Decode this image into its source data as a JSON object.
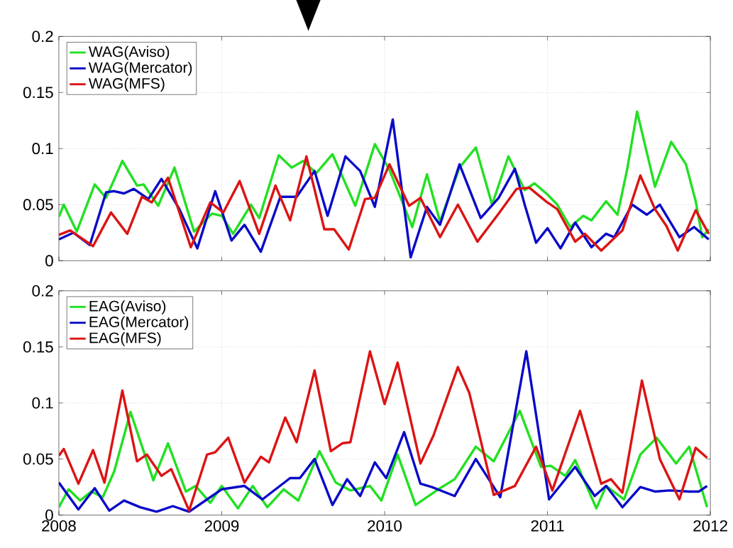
{
  "chart_data": [
    {
      "type": "line",
      "xlim": [
        2008,
        2012
      ],
      "xticks": [
        2008,
        2009,
        2010,
        2011,
        2012
      ],
      "ylim": [
        0,
        0.2
      ],
      "yticks": [
        0,
        0.05,
        0.1,
        0.15,
        0.2
      ],
      "grid": true,
      "legend": "top left",
      "line_style": "solid",
      "tick_labels": "y",
      "series": [
        {
          "name": "WAG(Aviso)",
          "color": "#22e022",
          "x": [
            2008.0,
            2008.03,
            2008.11,
            2008.22,
            2008.29,
            2008.39,
            2008.48,
            2008.52,
            2008.61,
            2008.71,
            2008.83,
            2008.94,
            2009.0,
            2009.07,
            2009.18,
            2009.23,
            2009.35,
            2009.43,
            2009.5,
            2009.58,
            2009.68,
            2009.82,
            2009.94,
            2010.03,
            2010.17,
            2010.26,
            2010.34,
            2010.46,
            2010.56,
            2010.66,
            2010.76,
            2010.86,
            2010.92,
            2011.0,
            2011.06,
            2011.14,
            2011.22,
            2011.27,
            2011.36,
            2011.43,
            2011.49,
            2011.55,
            2011.66,
            2011.76,
            2011.85,
            2011.91,
            2011.95,
            2011.99
          ],
          "values": [
            0.039,
            0.05,
            0.026,
            0.068,
            0.056,
            0.089,
            0.067,
            0.068,
            0.049,
            0.083,
            0.026,
            0.042,
            0.04,
            0.024,
            0.05,
            0.038,
            0.094,
            0.083,
            0.089,
            0.078,
            0.095,
            0.049,
            0.104,
            0.081,
            0.03,
            0.077,
            0.035,
            0.083,
            0.101,
            0.05,
            0.093,
            0.063,
            0.069,
            0.059,
            0.05,
            0.03,
            0.04,
            0.036,
            0.053,
            0.041,
            0.082,
            0.133,
            0.066,
            0.106,
            0.086,
            0.053,
            0.021,
            0.028
          ]
        },
        {
          "name": "WAG(Mercator)",
          "color": "#0a0ac8",
          "x": [
            2008.0,
            2008.09,
            2008.19,
            2008.29,
            2008.34,
            2008.4,
            2008.46,
            2008.55,
            2008.63,
            2008.74,
            2008.85,
            2008.96,
            2009.06,
            2009.14,
            2009.24,
            2009.36,
            2009.46,
            2009.57,
            2009.65,
            2009.76,
            2009.85,
            2009.94,
            2010.05,
            2010.16,
            2010.26,
            2010.34,
            2010.46,
            2010.59,
            2010.7,
            2010.8,
            2010.86,
            2010.93,
            2011.0,
            2011.08,
            2011.17,
            2011.27,
            2011.36,
            2011.41,
            2011.52,
            2011.61,
            2011.69,
            2011.81,
            2011.9,
            2011.99
          ],
          "values": [
            0.019,
            0.025,
            0.014,
            0.061,
            0.062,
            0.06,
            0.064,
            0.055,
            0.073,
            0.046,
            0.011,
            0.062,
            0.018,
            0.032,
            0.008,
            0.057,
            0.057,
            0.08,
            0.04,
            0.093,
            0.08,
            0.048,
            0.126,
            0.003,
            0.048,
            0.032,
            0.086,
            0.038,
            0.056,
            0.082,
            0.05,
            0.016,
            0.029,
            0.011,
            0.034,
            0.012,
            0.024,
            0.021,
            0.05,
            0.041,
            0.05,
            0.021,
            0.03,
            0.019
          ]
        },
        {
          "name": "WAG(MFS)",
          "color": "#dc1414",
          "x": [
            2008.0,
            2008.07,
            2008.21,
            2008.32,
            2008.42,
            2008.51,
            2008.57,
            2008.67,
            2008.81,
            2008.93,
            2009.01,
            2009.11,
            2009.23,
            2009.33,
            2009.42,
            2009.52,
            2009.63,
            2009.69,
            2009.78,
            2009.88,
            2009.94,
            2010.03,
            2010.15,
            2010.22,
            2010.34,
            2010.45,
            2010.57,
            2010.7,
            2010.81,
            2010.89,
            2010.99,
            2011.06,
            2011.17,
            2011.23,
            2011.33,
            2011.46,
            2011.57,
            2011.66,
            2011.73,
            2011.8,
            2011.91,
            2011.99
          ],
          "values": [
            0.023,
            0.027,
            0.013,
            0.043,
            0.024,
            0.057,
            0.052,
            0.074,
            0.012,
            0.052,
            0.043,
            0.071,
            0.024,
            0.067,
            0.036,
            0.093,
            0.028,
            0.028,
            0.01,
            0.055,
            0.056,
            0.086,
            0.049,
            0.056,
            0.021,
            0.05,
            0.017,
            0.042,
            0.064,
            0.065,
            0.053,
            0.046,
            0.017,
            0.024,
            0.009,
            0.027,
            0.076,
            0.046,
            0.031,
            0.009,
            0.045,
            0.024
          ]
        }
      ]
    },
    {
      "type": "line",
      "xlim": [
        2008,
        2012
      ],
      "xticks": [
        2008,
        2009,
        2010,
        2011,
        2012
      ],
      "ylim": [
        0,
        0.2
      ],
      "yticks": [
        0,
        0.05,
        0.1,
        0.15,
        0.2
      ],
      "grid": true,
      "legend": "top left",
      "line_style": "solid",
      "series": [
        {
          "name": "EAG(Aviso)",
          "color": "#22e022",
          "x": [
            2008.0,
            2008.06,
            2008.13,
            2008.2,
            2008.27,
            2008.34,
            2008.44,
            2008.58,
            2008.67,
            2008.78,
            2008.84,
            2008.93,
            2009.0,
            2009.1,
            2009.19,
            2009.28,
            2009.38,
            2009.47,
            2009.6,
            2009.7,
            2009.79,
            2009.91,
            2009.98,
            2010.08,
            2010.19,
            2010.33,
            2010.43,
            2010.56,
            2010.67,
            2010.83,
            2010.96,
            2011.02,
            2011.11,
            2011.17,
            2011.3,
            2011.36,
            2011.47,
            2011.57,
            2011.67,
            2011.79,
            2011.87,
            2011.98
          ],
          "values": [
            0.007,
            0.023,
            0.013,
            0.021,
            0.016,
            0.039,
            0.092,
            0.031,
            0.064,
            0.021,
            0.026,
            0.011,
            0.026,
            0.006,
            0.026,
            0.007,
            0.023,
            0.013,
            0.057,
            0.029,
            0.022,
            0.026,
            0.013,
            0.054,
            0.009,
            0.023,
            0.032,
            0.061,
            0.048,
            0.093,
            0.043,
            0.044,
            0.035,
            0.049,
            0.006,
            0.026,
            0.014,
            0.054,
            0.069,
            0.046,
            0.061,
            0.007
          ]
        },
        {
          "name": "EAG(Mercator)",
          "color": "#0a0ac8",
          "x": [
            2008.0,
            2008.12,
            2008.22,
            2008.31,
            2008.4,
            2008.5,
            2008.6,
            2008.7,
            2008.8,
            2008.91,
            2009.0,
            2009.14,
            2009.25,
            2009.42,
            2009.48,
            2009.57,
            2009.68,
            2009.77,
            2009.85,
            2009.94,
            2010.01,
            2010.12,
            2010.22,
            2010.29,
            2010.43,
            2010.56,
            2010.71,
            2010.87,
            2011.01,
            2011.17,
            2011.29,
            2011.36,
            2011.46,
            2011.57,
            2011.66,
            2011.75,
            2011.87,
            2011.93,
            2011.98
          ],
          "values": [
            0.029,
            0.005,
            0.024,
            0.004,
            0.013,
            0.007,
            0.003,
            0.008,
            0.003,
            0.014,
            0.023,
            0.026,
            0.014,
            0.033,
            0.033,
            0.05,
            0.009,
            0.032,
            0.017,
            0.047,
            0.033,
            0.074,
            0.028,
            0.025,
            0.017,
            0.05,
            0.016,
            0.146,
            0.014,
            0.043,
            0.017,
            0.026,
            0.007,
            0.025,
            0.021,
            0.022,
            0.021,
            0.021,
            0.026
          ]
        },
        {
          "name": "EAG(MFS)",
          "color": "#dc1414",
          "x": [
            2008.0,
            2008.03,
            2008.12,
            2008.21,
            2008.28,
            2008.39,
            2008.48,
            2008.54,
            2008.63,
            2008.69,
            2008.8,
            2008.91,
            2008.96,
            2009.04,
            2009.14,
            2009.24,
            2009.29,
            2009.39,
            2009.46,
            2009.57,
            2009.67,
            2009.74,
            2009.79,
            2009.91,
            2010.0,
            2010.08,
            2010.22,
            2010.3,
            2010.45,
            2010.52,
            2010.67,
            2010.8,
            2010.93,
            2011.03,
            2011.2,
            2011.33,
            2011.39,
            2011.46,
            2011.58,
            2011.69,
            2011.81,
            2011.91,
            2011.98
          ],
          "values": [
            0.053,
            0.059,
            0.028,
            0.058,
            0.029,
            0.111,
            0.048,
            0.054,
            0.035,
            0.041,
            0.004,
            0.054,
            0.056,
            0.069,
            0.029,
            0.052,
            0.047,
            0.087,
            0.065,
            0.129,
            0.057,
            0.064,
            0.065,
            0.146,
            0.099,
            0.136,
            0.046,
            0.071,
            0.132,
            0.109,
            0.018,
            0.026,
            0.061,
            0.022,
            0.093,
            0.028,
            0.032,
            0.02,
            0.12,
            0.05,
            0.014,
            0.06,
            0.051
          ]
        }
      ]
    }
  ]
}
